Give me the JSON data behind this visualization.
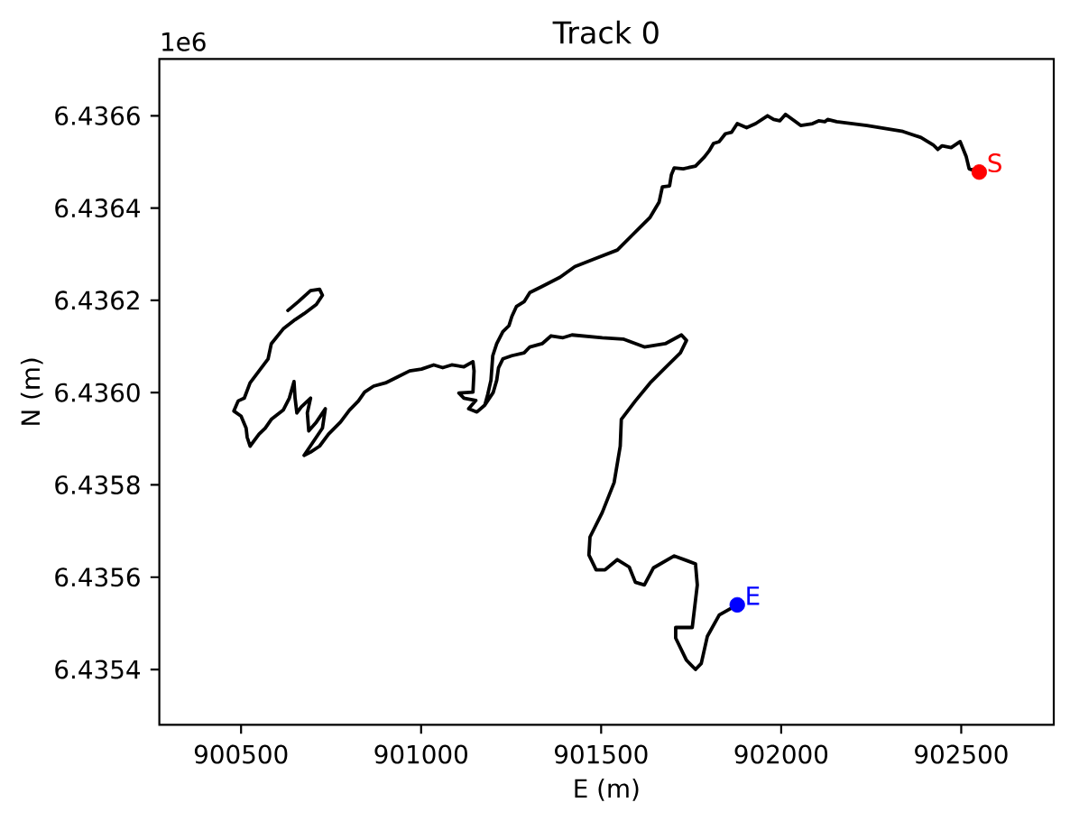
{
  "chart_data": {
    "type": "line",
    "title": "Track 0",
    "xlabel": "E (m)",
    "ylabel": "N (m)",
    "annotations": [
      "1e6"
    ],
    "xlim": [
      900273,
      902757
    ],
    "ylim": [
      6.43528,
      6.436723
    ],
    "xticks": [
      900500,
      901000,
      901500,
      902000,
      902500
    ],
    "yticks": [
      6.4354,
      6.4356,
      6.4358,
      {
        "value": 6.436,
        "label": "6.4360"
      },
      6.4362,
      6.4364,
      6.4366
    ],
    "series": [
      {
        "color": "#000000",
        "x": [
          902550,
          902522,
          902514,
          902497,
          902472,
          902447,
          902435,
          902422,
          902388,
          902338,
          902238,
          902154,
          902129,
          902121,
          902104,
          902087,
          902054,
          902037,
          902012,
          901996,
          901979,
          901962,
          901929,
          901904,
          901878,
          901862,
          901845,
          901828,
          901812,
          901800,
          901787,
          901762,
          901728,
          901703,
          901695,
          901690,
          901670,
          901661,
          901636,
          901586,
          901545,
          901486,
          901427,
          901386,
          901336,
          901302,
          901286,
          901265,
          901252,
          901244,
          901227,
          901210,
          901199,
          901194,
          901185,
          901177,
          901155,
          901132,
          901152,
          901119,
          901105,
          901144,
          901147,
          901144,
          901119,
          901085,
          901060,
          901035,
          901001,
          900968,
          900935,
          900901,
          900868,
          900843,
          900826,
          900801,
          900776,
          900743,
          900718,
          900693,
          900675,
          900726,
          900734,
          900709,
          900688,
          900684,
          900693,
          900667,
          900655,
          900650,
          900647,
          900634,
          900617,
          900584,
          900567,
          900550,
          900525,
          900517,
          900514,
          900500,
          900480,
          900492,
          900509,
          900525,
          900550,
          900575,
          900584,
          900617,
          900650,
          900675,
          900709,
          900726,
          900718,
          900693,
          900659,
          900630,
          900659,
          900693,
          900718,
          900726,
          900709,
          900675,
          900650,
          900617,
          900584,
          900575,
          900550,
          900525,
          900509,
          900492,
          900480,
          900500,
          900514,
          900517,
          900525,
          900550,
          900567,
          900584,
          900617,
          900634,
          900647,
          900650,
          900655,
          900667,
          900693,
          900684,
          900688,
          900709,
          900734,
          900726,
          900675,
          900693,
          900718,
          900743,
          900776,
          900801,
          900826,
          900843,
          900868,
          900901,
          900935,
          900968,
          901001,
          901035,
          901060,
          901085,
          901119,
          901144,
          901147,
          901144,
          901105,
          901119,
          901152,
          901132,
          901155,
          901177,
          901200,
          901210,
          901215,
          901227,
          901252,
          901286,
          901302,
          901336,
          901361,
          901394,
          901419,
          901503,
          901561,
          901620,
          901678,
          901723,
          901737,
          901720,
          901678,
          901636,
          901595,
          901556,
          901553,
          901536,
          901503,
          901469,
          901466,
          901486,
          901511,
          901545,
          901578,
          901595,
          901620,
          901645,
          901703,
          901762,
          901767,
          901753,
          901707,
          901707,
          901737,
          901762,
          901778,
          901795,
          901828,
          901878
        ],
        "values": [
          6.436478,
          6.436485,
          6.436511,
          6.436544,
          6.436531,
          6.436535,
          6.436527,
          6.436537,
          6.436553,
          6.436566,
          6.436579,
          6.436587,
          6.436592,
          6.436587,
          6.436589,
          6.436583,
          6.436579,
          6.436589,
          6.436603,
          6.436589,
          6.436592,
          6.4366,
          6.436583,
          6.436574,
          6.436583,
          6.436564,
          6.436561,
          6.436544,
          6.43654,
          6.436524,
          6.436511,
          6.436491,
          6.436485,
          6.436487,
          6.436472,
          6.436448,
          6.436446,
          6.436413,
          6.43638,
          6.436341,
          6.436309,
          6.436291,
          6.436273,
          6.43625,
          6.43623,
          6.436217,
          6.436197,
          6.436187,
          6.436165,
          6.436145,
          6.436132,
          6.436106,
          6.43608,
          6.436027,
          6.435996,
          6.435973,
          6.435958,
          6.435965,
          6.435983,
          6.435988,
          6.435999,
          6.436001,
          6.436047,
          6.436067,
          6.436056,
          6.43606,
          6.436054,
          6.43606,
          6.436051,
          6.436047,
          6.436034,
          6.436021,
          6.436014,
          6.436001,
          6.435982,
          6.435962,
          6.435936,
          6.43591,
          6.435884,
          6.435871,
          6.435864,
          6.435923,
          6.435965,
          6.435936,
          6.435917,
          6.435956,
          6.435988,
          6.435969,
          6.435956,
          6.435988,
          6.436024,
          6.435988,
          6.435962,
          6.435942,
          6.435923,
          6.43591,
          6.435884,
          6.435903,
          6.435923,
          6.435949,
          6.43596,
          6.435982,
          6.435988,
          6.436021,
          6.436047,
          6.436073,
          6.436106,
          6.436138,
          6.436158,
          6.436171,
          6.436191,
          6.436211,
          6.436224,
          6.436221,
          6.436197,
          6.436178,
          6.436197,
          6.436221,
          6.436224,
          6.436211,
          6.436191,
          6.436171,
          6.436158,
          6.436138,
          6.436106,
          6.436073,
          6.436047,
          6.436021,
          6.435988,
          6.435982,
          6.43596,
          6.435949,
          6.435923,
          6.435903,
          6.435884,
          6.43591,
          6.435923,
          6.435942,
          6.435962,
          6.435988,
          6.436024,
          6.435988,
          6.435956,
          6.435969,
          6.435988,
          6.435956,
          6.435917,
          6.435936,
          6.435965,
          6.435923,
          6.435864,
          6.435871,
          6.435884,
          6.43591,
          6.435936,
          6.435962,
          6.435982,
          6.436001,
          6.436014,
          6.436021,
          6.436034,
          6.436047,
          6.436051,
          6.43606,
          6.436054,
          6.43606,
          6.436056,
          6.436067,
          6.436047,
          6.436001,
          6.435999,
          6.435988,
          6.435983,
          6.435965,
          6.435958,
          6.435973,
          6.436,
          6.436027,
          6.436054,
          6.436073,
          6.43608,
          6.436086,
          6.436099,
          6.436106,
          6.436123,
          6.436119,
          6.436125,
          6.436119,
          6.436116,
          6.436099,
          6.436106,
          6.436125,
          6.436113,
          6.436086,
          6.436054,
          6.436021,
          6.435982,
          6.435942,
          6.435884,
          6.435805,
          6.43574,
          6.435687,
          6.435648,
          6.435616,
          6.435616,
          6.435638,
          6.435622,
          6.435589,
          6.435583,
          6.43562,
          6.435646,
          6.435629,
          6.435583,
          6.435491,
          6.435491,
          6.435468,
          6.43542,
          6.4354,
          6.435413,
          6.435472,
          6.435518,
          6.43554
        ]
      },
      {
        "type": "scatter",
        "name": "S",
        "color": "#ff0000",
        "marker": "circle",
        "x": [
          902550
        ],
        "values": [
          6.436478
        ]
      },
      {
        "type": "scatter",
        "name": "E",
        "color": "#0000ff",
        "marker": "circle",
        "x": [
          901878
        ],
        "values": [
          6.43554
        ]
      }
    ]
  }
}
